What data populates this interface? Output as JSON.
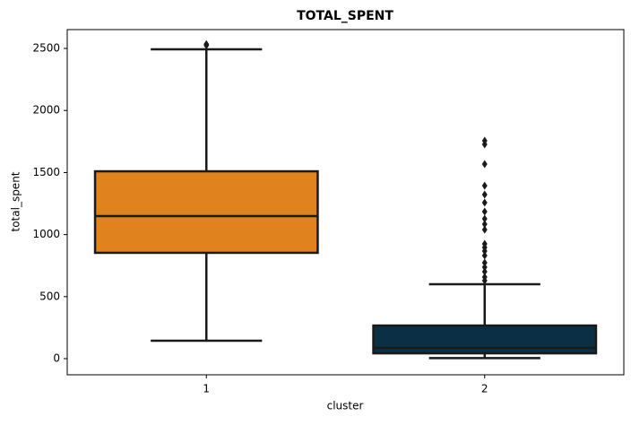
{
  "chart_data": {
    "type": "box",
    "title": "TOTAL_SPENT",
    "xlabel": "cluster",
    "ylabel": "total_spent",
    "categories": [
      "1",
      "2"
    ],
    "boxes": [
      {
        "whislo": 145,
        "q1": 853,
        "med": 1149,
        "q3": 1510,
        "whishi": 2493,
        "fliers": [
          2535,
          2525
        ],
        "color": "#e0821e"
      },
      {
        "whislo": 5,
        "q1": 43,
        "med": 87,
        "q3": 267,
        "whishi": 600,
        "fliers": [
          1756,
          1727,
          1568,
          1394,
          1322,
          1257,
          1185,
          1127,
          1084,
          1040,
          925,
          896,
          867,
          831,
          773,
          737,
          701,
          658,
          629
        ],
        "color": "#0b2f44"
      }
    ],
    "ylim": [
      -130,
      2652
    ],
    "yticks": [
      0,
      500,
      1000,
      1500,
      2000,
      2500
    ]
  }
}
